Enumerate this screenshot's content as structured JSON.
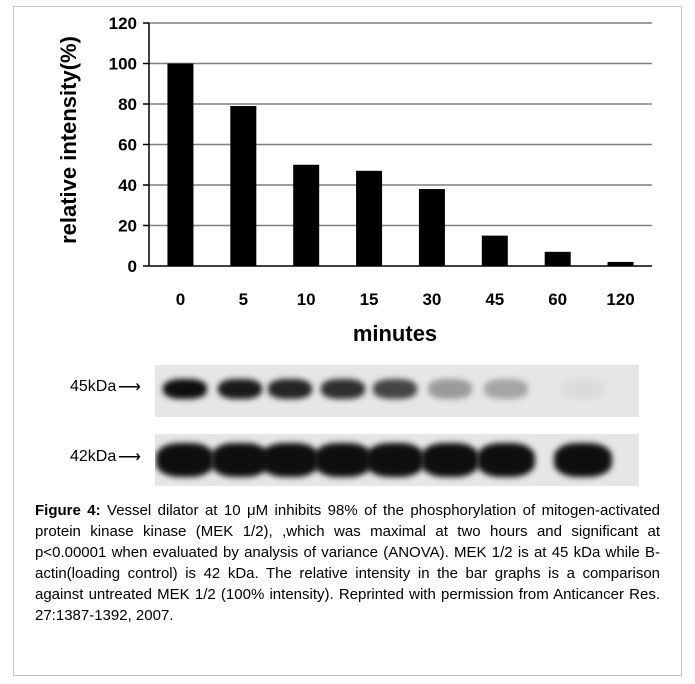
{
  "chart_data": {
    "type": "bar",
    "title": "",
    "xlabel": "minutes",
    "ylabel": "relative intensity(%)",
    "categories": [
      "0",
      "5",
      "10",
      "15",
      "30",
      "45",
      "60",
      "120"
    ],
    "values": [
      100,
      79,
      50,
      47,
      38,
      15,
      7,
      2
    ],
    "ylim": [
      0,
      120
    ],
    "yticks": [
      "0",
      "20",
      "40",
      "60",
      "80",
      "100",
      "120"
    ],
    "grid": true,
    "legend": "none",
    "bar_color": "#000000"
  },
  "blot": {
    "top_label": "45kDa",
    "bottom_label": "42kDa",
    "top_band_intensities": [
      1.0,
      0.95,
      0.9,
      0.85,
      0.75,
      0.35,
      0.3,
      0.05
    ],
    "bottom_band_intensities": [
      1.0,
      1.0,
      1.0,
      1.0,
      1.0,
      1.0,
      1.0,
      1.0
    ]
  },
  "caption": {
    "label": "Figure 4:",
    "text": " Vessel dilator at 10 μM inhibits 98% of the phosphorylation of mitogen-activated protein kinase kinase (MEK 1/2), ,which was maximal at two hours and significant at p<0.00001 when evaluated by analysis of variance (ANOVA). MEK 1/2  is at 45 kDa while B-actin(loading control) is 42 kDa. The relative intensity in the bar graphs is a comparison against untreated MEK 1/2 (100% intensity). Reprinted with permission from Anticancer Res. 27:1387-1392, 2007."
  }
}
